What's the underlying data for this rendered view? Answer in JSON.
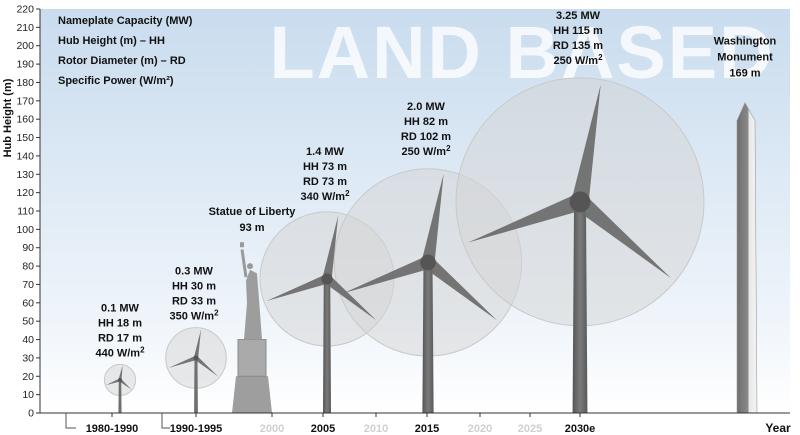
{
  "chart_data": {
    "type": "bar",
    "title": "LAND BASED",
    "ylabel": "Hub Height (m)",
    "xlabel": "Year",
    "ylim": [
      0,
      220
    ],
    "yticks": [
      0,
      10,
      20,
      30,
      40,
      50,
      60,
      70,
      80,
      90,
      100,
      110,
      120,
      130,
      140,
      150,
      160,
      170,
      180,
      190,
      200,
      210,
      220
    ],
    "legend": [
      "Nameplate Capacity (MW)",
      "Hub Height (m) – HH",
      "Rotor Diameter (m) – RD",
      "Specific Power (W/m²)"
    ],
    "x_axis_labels": [
      {
        "text": "1980-1990",
        "faded": false
      },
      {
        "text": "1990-1995",
        "faded": false
      },
      {
        "text": "2000",
        "faded": true
      },
      {
        "text": "2005",
        "faded": false
      },
      {
        "text": "2010",
        "faded": true
      },
      {
        "text": "2015",
        "faded": false
      },
      {
        "text": "2020",
        "faded": true
      },
      {
        "text": "2025",
        "faded": true
      },
      {
        "text": "2030e",
        "faded": false
      }
    ],
    "turbines": [
      {
        "period": "1980-1990",
        "capacity": "0.1 MW",
        "hh_label": "HH 18 m",
        "rd_label": "RD 17 m",
        "sp_label": "440 W/m",
        "hub_height": 18,
        "rotor_diameter": 17
      },
      {
        "period": "1990-1995",
        "capacity": "0.3 MW",
        "hh_label": "HH 30 m",
        "rd_label": "RD 33 m",
        "sp_label": "350 W/m",
        "hub_height": 30,
        "rotor_diameter": 33
      },
      {
        "period": "2005",
        "capacity": "1.4 MW",
        "hh_label": "HH 73 m",
        "rd_label": "RD 73 m",
        "sp_label": "340 W/m",
        "hub_height": 73,
        "rotor_diameter": 73
      },
      {
        "period": "2015",
        "capacity": "2.0 MW",
        "hh_label": "HH 82 m",
        "rd_label": "RD 102 m",
        "sp_label": "250 W/m",
        "hub_height": 82,
        "rotor_diameter": 102
      },
      {
        "period": "2030e",
        "capacity": "3.25 MW",
        "hh_label": "HH 115 m",
        "rd_label": "RD 135 m",
        "sp_label": "250 W/m",
        "hub_height": 115,
        "rotor_diameter": 135
      }
    ],
    "references": [
      {
        "name_lines": [
          "Statue of Liberty"
        ],
        "value_label": "93 m",
        "height": 93
      },
      {
        "name_lines": [
          "Washington",
          "Monument"
        ],
        "value_label": "169 m",
        "height": 169
      }
    ],
    "colors": {
      "sky_top": "#c9dcee",
      "sky_bottom": "#ffffff",
      "tower": "#6b6b6b",
      "tower_light": "#9a9a9a",
      "rotor_fill": "#d0d0d0"
    }
  }
}
